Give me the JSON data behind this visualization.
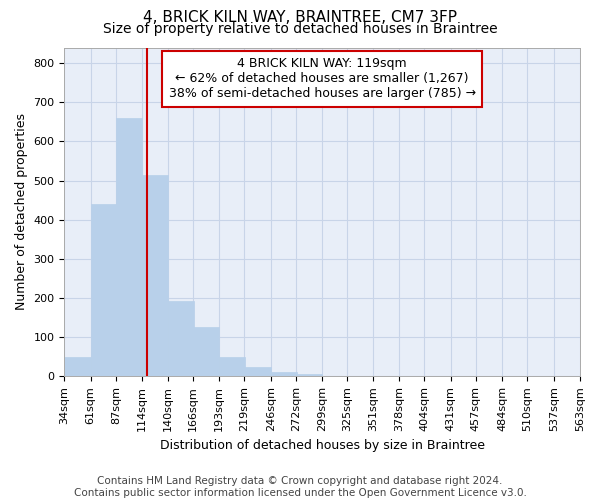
{
  "title": "4, BRICK KILN WAY, BRAINTREE, CM7 3FP",
  "subtitle": "Size of property relative to detached houses in Braintree",
  "xlabel": "Distribution of detached houses by size in Braintree",
  "ylabel": "Number of detached properties",
  "bar_values": [
    50,
    440,
    660,
    515,
    193,
    127,
    50,
    25,
    10,
    5,
    0,
    0,
    0,
    0,
    0,
    0,
    0,
    0,
    0,
    0
  ],
  "bin_labels": [
    "34sqm",
    "61sqm",
    "87sqm",
    "114sqm",
    "140sqm",
    "166sqm",
    "193sqm",
    "219sqm",
    "246sqm",
    "272sqm",
    "299sqm",
    "325sqm",
    "351sqm",
    "378sqm",
    "404sqm",
    "431sqm",
    "457sqm",
    "484sqm",
    "510sqm",
    "537sqm",
    "563sqm"
  ],
  "bin_left_edges": [
    34,
    61,
    87,
    114,
    140,
    166,
    193,
    219,
    246,
    272,
    299,
    325,
    351,
    378,
    404,
    431,
    457,
    484,
    510,
    537
  ],
  "bin_width": 27,
  "x_min": 34,
  "x_max": 563,
  "property_size": 119,
  "bar_color": "#b8d0ea",
  "bar_edge_color": "#b8d0ea",
  "vline_color": "#cc0000",
  "annotation_text": "4 BRICK KILN WAY: 119sqm\n← 62% of detached houses are smaller (1,267)\n38% of semi-detached houses are larger (785) →",
  "annotation_box_color": "#ffffff",
  "annotation_box_edge": "#cc0000",
  "ylim": [
    0,
    840
  ],
  "yticks": [
    0,
    100,
    200,
    300,
    400,
    500,
    600,
    700,
    800
  ],
  "footer": "Contains HM Land Registry data © Crown copyright and database right 2024.\nContains public sector information licensed under the Open Government Licence v3.0.",
  "grid_color": "#c8d4e8",
  "background_color": "#e8eef8",
  "title_fontsize": 11,
  "subtitle_fontsize": 10,
  "axis_label_fontsize": 9,
  "tick_fontsize": 8,
  "annotation_fontsize": 9,
  "footer_fontsize": 7.5
}
